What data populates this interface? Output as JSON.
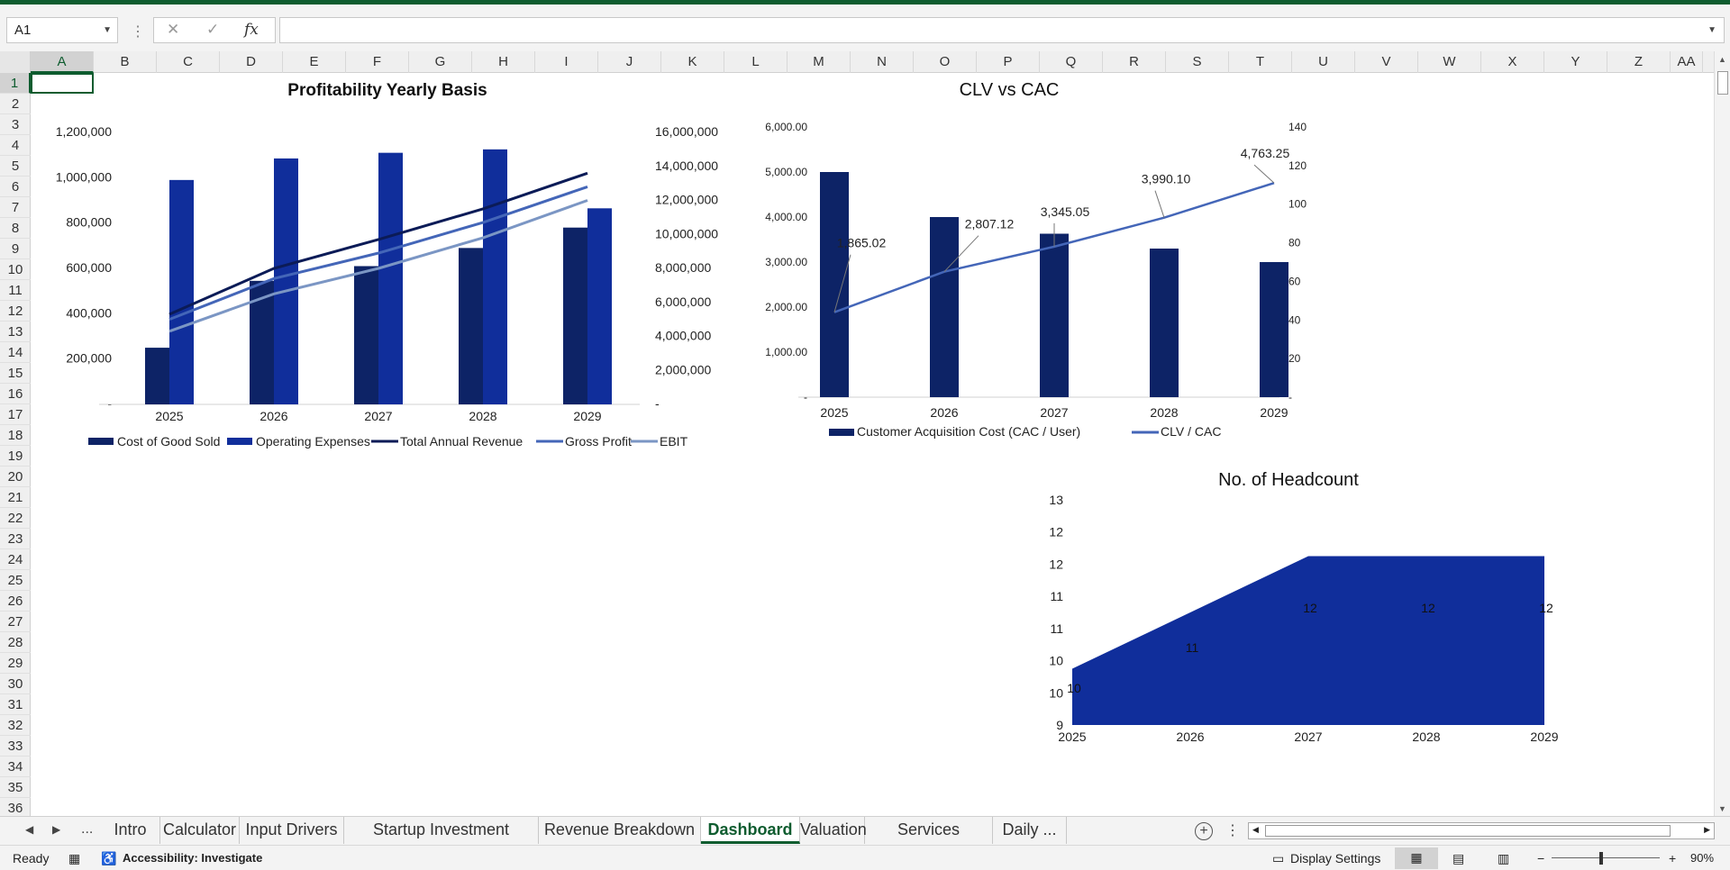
{
  "formula_bar": {
    "name_box": "A1",
    "cancel_icon": "✕",
    "enter_icon": "✓",
    "fx_label": "fx",
    "formula": ""
  },
  "columns": [
    "A",
    "B",
    "C",
    "D",
    "E",
    "F",
    "G",
    "H",
    "I",
    "J",
    "K",
    "L",
    "M",
    "N",
    "O",
    "P",
    "Q",
    "R",
    "S",
    "T",
    "U",
    "V",
    "W",
    "X",
    "Y",
    "Z",
    "AA"
  ],
  "rows": [
    "1",
    "2",
    "3",
    "4",
    "5",
    "6",
    "7",
    "8",
    "9",
    "10",
    "11",
    "12",
    "13",
    "14",
    "15",
    "16",
    "17",
    "18",
    "19",
    "20",
    "21",
    "22",
    "23",
    "24",
    "25",
    "26",
    "27",
    "28",
    "29",
    "30",
    "31",
    "32",
    "33",
    "34",
    "35",
    "36"
  ],
  "charts": {
    "profitability": {
      "title": "Profitability Yearly Basis",
      "left_ticks": [
        "1,200,000",
        "1,000,000",
        "800,000",
        "600,000",
        "400,000",
        "200,000",
        "-"
      ],
      "right_ticks": [
        "16,000,000",
        "14,000,000",
        "12,000,000",
        "10,000,000",
        "8,000,000",
        "6,000,000",
        "4,000,000",
        "2,000,000",
        "-"
      ],
      "legend": [
        "Cost of Good Sold",
        "Operating Expenses",
        "Total Annual Revenue",
        "Gross Profit",
        "EBIT"
      ]
    },
    "clv_cac": {
      "title": "CLV vs CAC",
      "left_ticks": [
        "6,000.00",
        "5,000.00",
        "4,000.00",
        "3,000.00",
        "2,000.00",
        "1,000.00",
        "-"
      ],
      "right_ticks": [
        "140",
        "120",
        "100",
        "80",
        "60",
        "40",
        "20",
        "-"
      ],
      "data_labels": [
        "1,865.02",
        "2,807.12",
        "3,345.05",
        "3,990.10",
        "4,763.25"
      ],
      "legend": [
        "Customer Acquisition  Cost (CAC / User)",
        "CLV / CAC"
      ]
    },
    "headcount": {
      "title": "No. of Headcount",
      "y_ticks": [
        "13",
        "12",
        "12",
        "11",
        "11",
        "10",
        "10",
        "9"
      ],
      "data_labels": [
        "10",
        "11",
        "12",
        "12",
        "12"
      ]
    }
  },
  "chart_data": [
    {
      "type": "bar",
      "title": "Profitability Yearly Basis",
      "categories": [
        "2025",
        "2026",
        "2027",
        "2028",
        "2029"
      ],
      "ylim": [
        0,
        1200000
      ],
      "y2lim": [
        0,
        16000000
      ],
      "series": [
        {
          "name": "Cost of Good Sold",
          "type": "bar",
          "axis": "left",
          "values": [
            250000,
            545000,
            610000,
            690000,
            780000
          ]
        },
        {
          "name": "Operating Expenses",
          "type": "bar",
          "axis": "left",
          "values": [
            990000,
            1085000,
            1110000,
            1125000,
            865000
          ]
        },
        {
          "name": "Total Annual Revenue",
          "type": "line",
          "axis": "right",
          "values": [
            5300000,
            8000000,
            9700000,
            11500000,
            13600000
          ]
        },
        {
          "name": "Gross Profit",
          "type": "line",
          "axis": "right",
          "values": [
            5000000,
            7400000,
            8900000,
            10700000,
            12800000
          ]
        },
        {
          "name": "EBIT",
          "type": "line",
          "axis": "right",
          "values": [
            4300000,
            6500000,
            8000000,
            9800000,
            12000000
          ]
        }
      ],
      "legend": "bottom",
      "grid": false
    },
    {
      "type": "bar",
      "title": "CLV vs CAC",
      "categories": [
        "2025",
        "2026",
        "2027",
        "2028",
        "2029"
      ],
      "ylim": [
        0,
        6000
      ],
      "y2lim": [
        0,
        140
      ],
      "series": [
        {
          "name": "Customer Acquisition  Cost (CAC / User)",
          "type": "bar",
          "axis": "left",
          "values": [
            5000,
            4000,
            3630,
            3300,
            3000
          ]
        },
        {
          "name": "CLV / CAC",
          "type": "line",
          "axis": "right",
          "values": [
            44,
            65,
            78,
            93,
            111
          ],
          "labels": [
            "1,865.02",
            "2,807.12",
            "3,345.05",
            "3,990.10",
            "4,763.25"
          ]
        }
      ],
      "legend": "bottom",
      "grid": false
    },
    {
      "type": "area",
      "title": "No. of Headcount",
      "x": [
        "2025",
        "2026",
        "2027",
        "2028",
        "2029"
      ],
      "values": [
        10,
        11,
        12,
        12,
        12
      ],
      "ylim": [
        9,
        13
      ],
      "legend": "none",
      "grid": false
    }
  ],
  "sheet_tabs": {
    "prev": "◀",
    "next": "▶",
    "more_left": "...",
    "tabs": [
      "Intro",
      "Calculator",
      "Input Drivers",
      "Startup Investment Summary",
      "Revenue Breakdown",
      "Dashboard",
      "Valuation",
      "Services Summary",
      "Daily ..."
    ],
    "active": "Dashboard",
    "add": "+"
  },
  "status": {
    "ready": "Ready",
    "accessibility": "Accessibility: Investigate",
    "display_settings": "Display Settings",
    "zoom": "90%",
    "zoom_minus": "−",
    "zoom_plus": "+"
  },
  "colors": {
    "excel_green": "#0e5c2f",
    "bar_dark": "#0d2366",
    "bar_blue": "#102e9b",
    "line_navy": "#0b1b57",
    "line_mid": "#4466b8",
    "line_light": "#7b96c4"
  }
}
